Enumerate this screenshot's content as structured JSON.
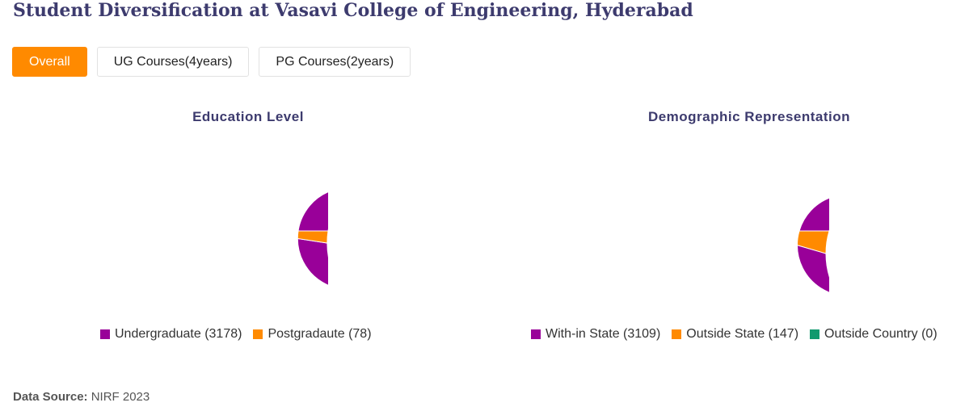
{
  "page": {
    "title": "Student Diversification at Vasavi College of Engineering, Hyderabad",
    "tabs": [
      {
        "label": "Overall",
        "active": true
      },
      {
        "label": "UG Courses(4years)",
        "active": false
      },
      {
        "label": "PG Courses(2years)",
        "active": false
      }
    ],
    "source_label": "Data Source:",
    "source_value": "NIRF 2023"
  },
  "colors": {
    "accent": "#ff8a00",
    "purple": "#990099",
    "orange": "#ff8a00",
    "green": "#109a6e"
  },
  "chart_data": [
    {
      "type": "pie",
      "donut": true,
      "title": "Education Level",
      "legend_position": "bottom",
      "slices": [
        {
          "label": "Undergraduate",
          "value": 3178,
          "color": "#990099",
          "legend": "Undergraduate (3178)"
        },
        {
          "label": "Postgradaute",
          "value": 78,
          "color": "#ff8a00",
          "legend": "Postgradaute (78)"
        }
      ]
    },
    {
      "type": "pie",
      "donut": true,
      "title": "Demographic Representation",
      "legend_position": "bottom",
      "slices": [
        {
          "label": "With-in State",
          "value": 3109,
          "color": "#990099",
          "legend": "With-in State (3109)"
        },
        {
          "label": "Outside State",
          "value": 147,
          "color": "#ff8a00",
          "legend": "Outside State (147)"
        },
        {
          "label": "Outside Country",
          "value": 0,
          "color": "#109a6e",
          "legend": "Outside Country (0)"
        }
      ]
    }
  ]
}
